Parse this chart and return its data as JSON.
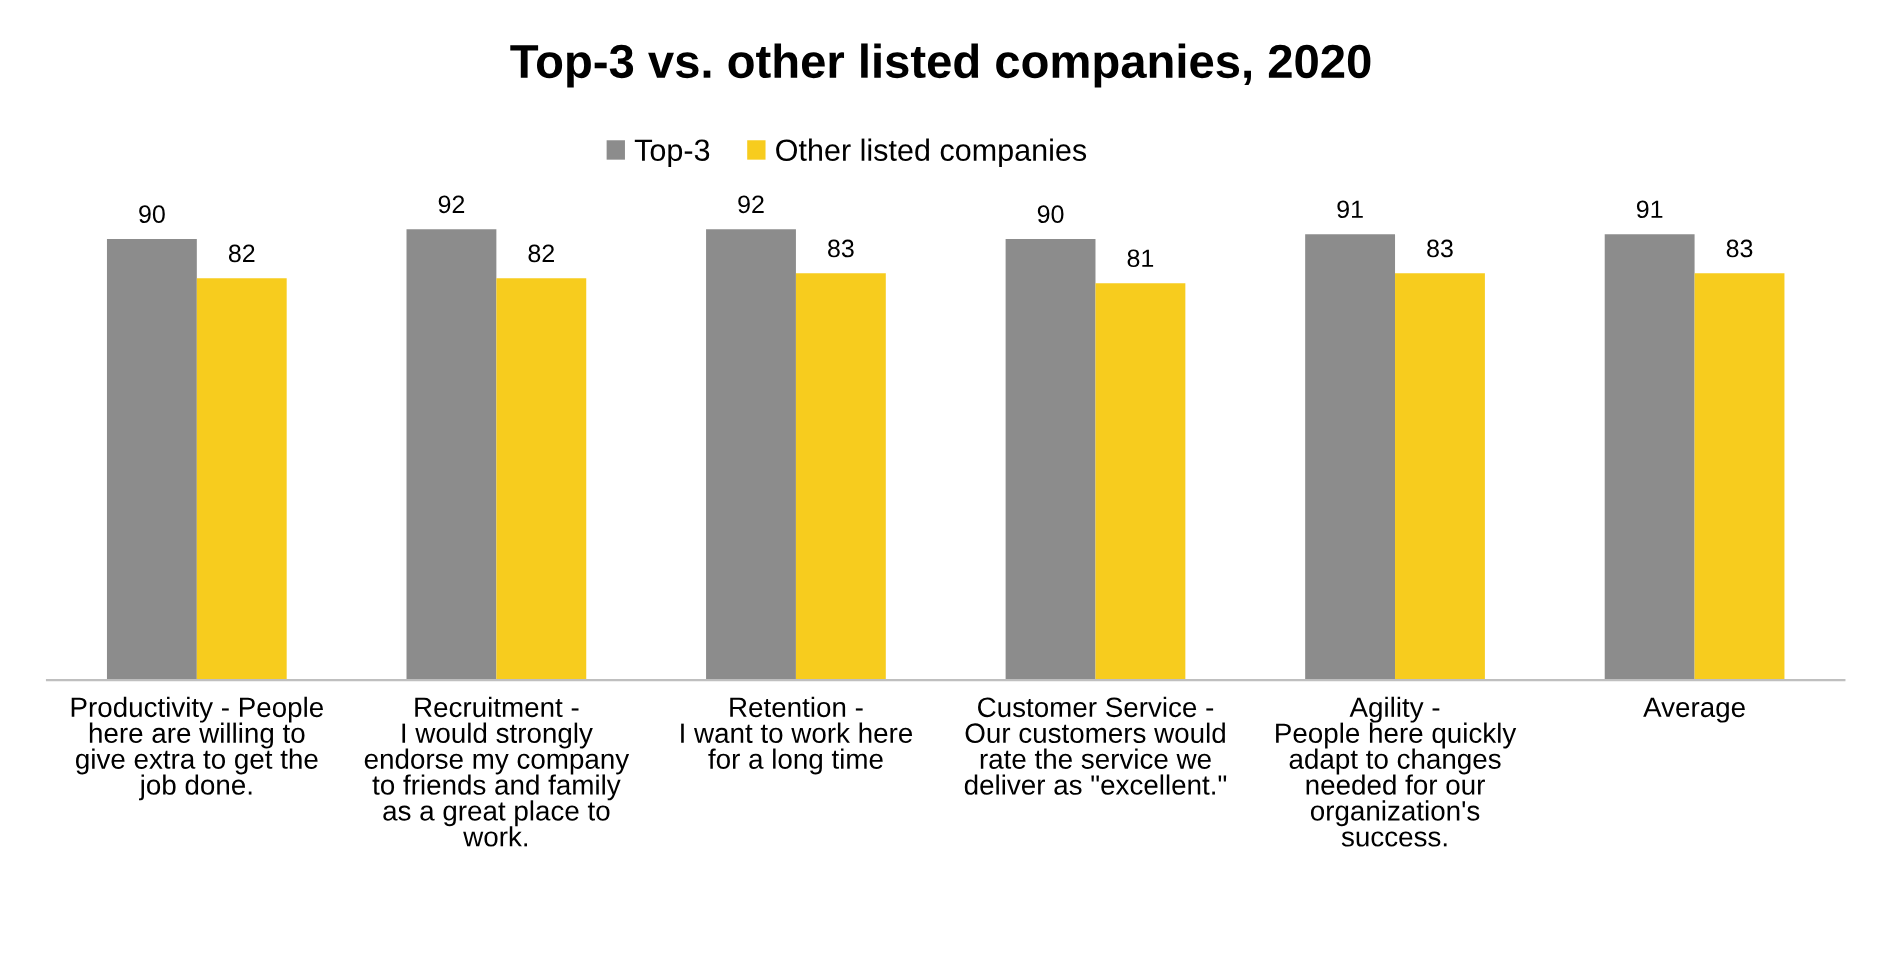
{
  "chart_data": {
    "type": "bar",
    "title": "Top-3 vs. other listed companies, 2020",
    "categories": [
      "Productivity - People\nhere are willing to\ngive extra to get the\njob done.",
      "Recruitment -\nI would strongly\nendorse my company\nto friends and family\nas a great place to\nwork.",
      "Retention -\nI want to work here\nfor a long time",
      "Customer Service -\nOur customers would\nrate the service we\ndeliver as \"excellent.\"",
      "Agility -\nPeople here quickly\nadapt to changes\nneeded for our\norganization's\nsuccess.",
      "Average"
    ],
    "series": [
      {
        "name": "Top-3",
        "color": "#8c8c8c",
        "values": [
          90,
          92,
          92,
          90,
          91,
          91
        ]
      },
      {
        "name": "Other listed companies",
        "color": "#f7cc1e",
        "values": [
          82,
          82,
          83,
          81,
          83,
          83
        ]
      }
    ],
    "data_labels": true,
    "legend": "top",
    "grid": false,
    "tick_labels": "x"
  }
}
